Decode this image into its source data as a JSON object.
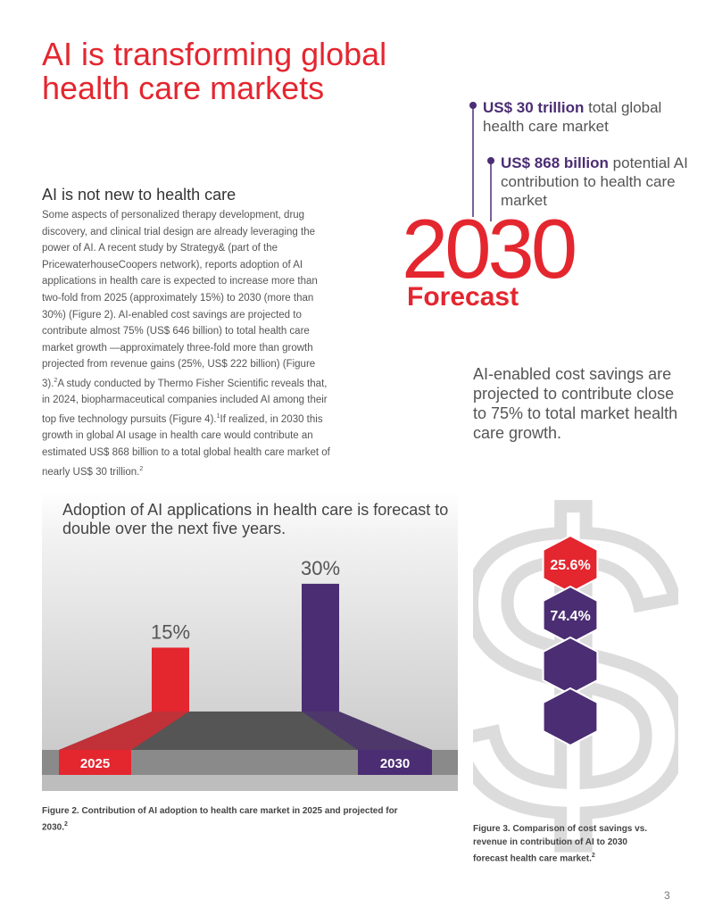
{
  "header": {
    "title": "AI is transforming global health care markets"
  },
  "callouts": [
    {
      "value": "US$ 30 trillion",
      "text": "total global health care market"
    },
    {
      "value": "US$ 868 billion",
      "text": "potential AI contribution to health care market"
    }
  ],
  "forecast": {
    "year": "2030",
    "label": "Forecast"
  },
  "section": {
    "heading": "AI is not new to health care",
    "body": [
      {
        "text": "Some aspects of personalized therapy development, drug discovery, and clinical trial design are already leveraging the power of AI. A recent study by Strategy& (part of the PricewaterhouseCoopers network), reports adoption of AI applications in health care is expected to increase more than two-fold from 2025 (approximately 15%) to 2030 (more than 30%) (Figure 2). AI-enabled cost savings are projected to contribute almost 75% (US$ 646 billion) to total health care market growth —approximately three-fold more than growth projected from revenue gains (25%, US$ 222 billion) (Figure 3).",
        "sup": "2"
      },
      {
        "text": "A study conducted by Thermo Fisher Scientific reveals that, in 2024, biopharmaceutical companies included AI among their top five technology pursuits (Figure 4).",
        "sup": "1"
      },
      {
        "text": "If realized, in 2030 this growth in global AI usage in health care would contribute an estimated US$ 868 billion to a total global health care market of nearly US$ 30 trillion.",
        "sup": "2"
      }
    ]
  },
  "highlight": "AI-enabled cost savings are projected to contribute close to 75% to total market health care growth.",
  "figure2": {
    "title": "Adoption of AI applications in health care is forecast to double over the next five years.",
    "categories": [
      "2025",
      "2030"
    ],
    "values": [
      15,
      30
    ],
    "value_labels": [
      "15%",
      "30%"
    ],
    "colors": [
      "#e4262f",
      "#4b2d73"
    ],
    "caption": "Figure 2. Contribution of AI adoption to health care market in 2025 and projected for 2030.",
    "caption_sup": "2"
  },
  "figure3": {
    "values": [
      25.6,
      74.4
    ],
    "value_labels": [
      "25.6%",
      "74.4%"
    ],
    "colors": [
      "#e4262f",
      "#4b2d73"
    ],
    "caption": "Figure 3. Comparison of cost savings vs. revenue in contribution of AI to 2030 forecast health care market.",
    "caption_sup": "2"
  },
  "page_number": "3"
}
